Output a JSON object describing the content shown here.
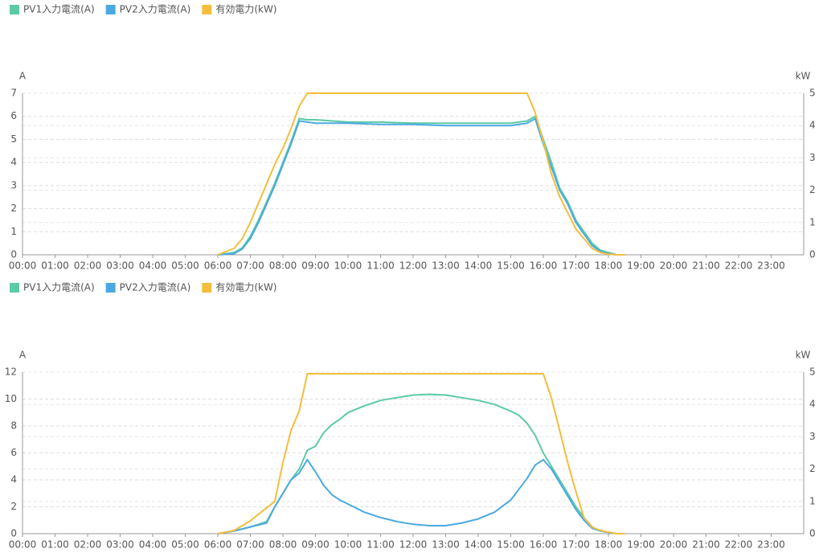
{
  "chart_data": [
    {
      "type": "line",
      "y_label": "A",
      "y2_label": "kW",
      "x": [
        6,
        6.5,
        6.75,
        7,
        7.25,
        7.5,
        7.75,
        8,
        8.25,
        8.5,
        8.75,
        9,
        10,
        11,
        12,
        13,
        14,
        15,
        15.5,
        15.75,
        16,
        16.25,
        16.5,
        16.75,
        17,
        17.25,
        17.5,
        17.75,
        18,
        18.25,
        18.5
      ],
      "xlim": [
        0,
        24
      ],
      "xticks": [
        {
          "value": 0,
          "label": "00:00"
        },
        {
          "value": 1,
          "label": "01:00"
        },
        {
          "value": 2,
          "label": "02:00"
        },
        {
          "value": 3,
          "label": "03:00"
        },
        {
          "value": 4,
          "label": "04:00"
        },
        {
          "value": 5,
          "label": "05:00"
        },
        {
          "value": 6,
          "label": "06:00"
        },
        {
          "value": 7,
          "label": "07:00"
        },
        {
          "value": 8,
          "label": "08:00"
        },
        {
          "value": 9,
          "label": "09:00"
        },
        {
          "value": 10,
          "label": "10:00"
        },
        {
          "value": 11,
          "label": "11:00"
        },
        {
          "value": 12,
          "label": "12:00"
        },
        {
          "value": 13,
          "label": "13:00"
        },
        {
          "value": 14,
          "label": "14:00"
        },
        {
          "value": 15,
          "label": "15:00"
        },
        {
          "value": 16,
          "label": "16:00"
        },
        {
          "value": 17,
          "label": "17:00"
        },
        {
          "value": 18,
          "label": "18:00"
        },
        {
          "value": 19,
          "label": "19:00"
        },
        {
          "value": 20,
          "label": "20:00"
        },
        {
          "value": 21,
          "label": "21:00"
        },
        {
          "value": 22,
          "label": "22:00"
        },
        {
          "value": 23,
          "label": "23:00"
        }
      ],
      "ylim": [
        0,
        7
      ],
      "yticks": [
        0,
        1,
        2,
        3,
        4,
        5,
        6,
        7
      ],
      "y2lim": [
        0,
        5
      ],
      "y2ticks": [
        0,
        1,
        2,
        3,
        4,
        5
      ],
      "grid": true,
      "series": [
        {
          "name": "PV1入力電流(A)",
          "color": "#5cc9a7",
          "values": [
            0,
            0.1,
            0.3,
            0.8,
            1.5,
            2.3,
            3.1,
            4.0,
            4.9,
            5.9,
            5.85,
            5.85,
            5.75,
            5.75,
            5.7,
            5.7,
            5.7,
            5.7,
            5.8,
            6.0,
            5.0,
            4.0,
            2.9,
            2.3,
            1.5,
            1.0,
            0.5,
            0.2,
            0.1,
            0,
            0
          ]
        },
        {
          "name": "PV2入力電流(A)",
          "color": "#4ba9e1",
          "values": [
            0,
            0.05,
            0.25,
            0.7,
            1.4,
            2.2,
            3.0,
            3.9,
            4.8,
            5.8,
            5.75,
            5.7,
            5.7,
            5.65,
            5.65,
            5.6,
            5.6,
            5.6,
            5.7,
            5.9,
            4.8,
            3.8,
            2.8,
            2.2,
            1.4,
            0.9,
            0.4,
            0.15,
            0.05,
            0,
            0
          ]
        },
        {
          "name": "有効電力(kW)",
          "color": "#f4bd3c",
          "axis": "y2",
          "values": [
            0,
            0.2,
            0.5,
            1.0,
            1.6,
            2.2,
            2.8,
            3.3,
            3.9,
            4.6,
            5,
            5,
            5,
            5,
            5,
            5,
            5,
            5,
            5,
            4.4,
            3.5,
            2.5,
            1.8,
            1.3,
            0.8,
            0.5,
            0.2,
            0.07,
            0.02,
            0,
            0
          ]
        }
      ]
    },
    {
      "type": "line",
      "y_label": "A",
      "y2_label": "kW",
      "x": [
        6,
        6.5,
        7,
        7.5,
        7.75,
        8,
        8.25,
        8.5,
        8.75,
        9,
        9.25,
        9.5,
        9.75,
        10,
        10.5,
        11,
        11.5,
        12,
        12.5,
        13,
        13.5,
        14,
        14.5,
        15,
        15.25,
        15.5,
        15.75,
        16,
        16.25,
        16.5,
        16.75,
        17,
        17.25,
        17.5,
        17.75,
        18,
        18.25,
        18.5
      ],
      "xlim": [
        0,
        24
      ],
      "xticks": [
        {
          "value": 0,
          "label": "00:00"
        },
        {
          "value": 1,
          "label": "01:00"
        },
        {
          "value": 2,
          "label": "02:00"
        },
        {
          "value": 3,
          "label": "03:00"
        },
        {
          "value": 4,
          "label": "04:00"
        },
        {
          "value": 5,
          "label": "05:00"
        },
        {
          "value": 6,
          "label": "06:00"
        },
        {
          "value": 7,
          "label": "07:00"
        },
        {
          "value": 8,
          "label": "08:00"
        },
        {
          "value": 9,
          "label": "09:00"
        },
        {
          "value": 10,
          "label": "10:00"
        },
        {
          "value": 11,
          "label": "11:00"
        },
        {
          "value": 12,
          "label": "12:00"
        },
        {
          "value": 13,
          "label": "13:00"
        },
        {
          "value": 14,
          "label": "14:00"
        },
        {
          "value": 15,
          "label": "15:00"
        },
        {
          "value": 16,
          "label": "16:00"
        },
        {
          "value": 17,
          "label": "17:00"
        },
        {
          "value": 18,
          "label": "18:00"
        },
        {
          "value": 19,
          "label": "19:00"
        },
        {
          "value": 20,
          "label": "20:00"
        },
        {
          "value": 21,
          "label": "21:00"
        },
        {
          "value": 22,
          "label": "22:00"
        },
        {
          "value": 23,
          "label": "23:00"
        }
      ],
      "ylim": [
        0,
        12
      ],
      "yticks": [
        0,
        2,
        4,
        6,
        8,
        10,
        12
      ],
      "y2lim": [
        0,
        5
      ],
      "y2ticks": [
        0,
        1,
        2,
        3,
        4,
        5
      ],
      "grid": true,
      "series": [
        {
          "name": "PV1入力電流(A)",
          "color": "#5cc9a7",
          "values": [
            0,
            0.2,
            0.5,
            0.9,
            2.0,
            3.0,
            4.0,
            4.8,
            6.2,
            6.5,
            7.5,
            8.1,
            8.5,
            9.0,
            9.5,
            9.9,
            10.1,
            10.3,
            10.35,
            10.3,
            10.1,
            9.9,
            9.6,
            9.1,
            8.8,
            8.2,
            7.3,
            6.0,
            5.0,
            4.0,
            3.0,
            2.0,
            1.2,
            0.5,
            0.2,
            0.1,
            0,
            0
          ]
        },
        {
          "name": "PV2入力電流(A)",
          "color": "#4ba9e1",
          "values": [
            0,
            0.2,
            0.5,
            0.8,
            2.0,
            3.0,
            4.0,
            4.5,
            5.5,
            4.6,
            3.6,
            2.9,
            2.5,
            2.2,
            1.6,
            1.2,
            0.9,
            0.7,
            0.6,
            0.6,
            0.8,
            1.1,
            1.6,
            2.5,
            3.3,
            4.1,
            5.1,
            5.5,
            4.8,
            3.8,
            2.8,
            1.8,
            1.0,
            0.4,
            0.2,
            0.1,
            0,
            0
          ]
        },
        {
          "name": "有効電力(kW)",
          "color": "#f4bd3c",
          "axis": "y2",
          "values": [
            0,
            0.1,
            0.4,
            0.8,
            1.0,
            2.2,
            3.2,
            3.8,
            4.95,
            4.95,
            4.95,
            4.95,
            4.95,
            4.95,
            4.95,
            4.95,
            4.95,
            4.95,
            4.95,
            4.95,
            4.95,
            4.95,
            4.95,
            4.95,
            4.95,
            4.95,
            4.95,
            4.95,
            4.2,
            3.2,
            2.2,
            1.3,
            0.5,
            0.2,
            0.1,
            0.05,
            0,
            0
          ]
        }
      ]
    }
  ]
}
